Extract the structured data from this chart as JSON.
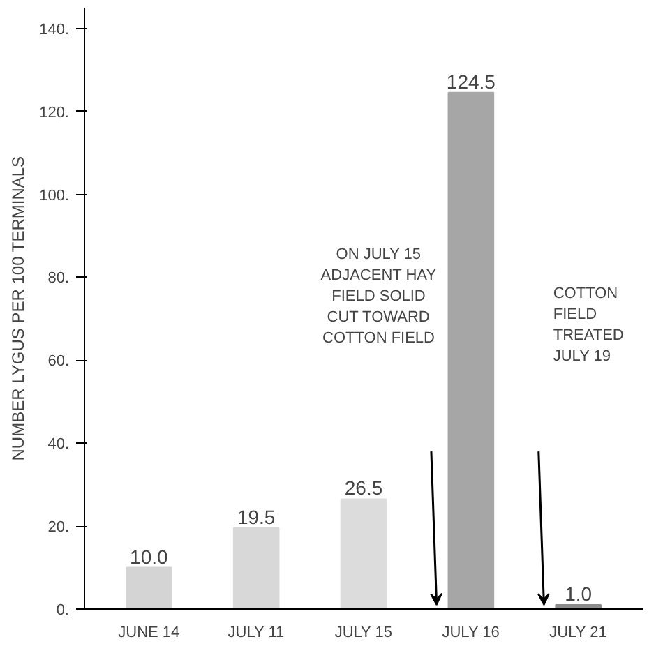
{
  "chart_data": {
    "type": "bar",
    "ylabel": "NUMBER LYGUS PER 100 TERMINALS",
    "categories": [
      "JUNE 14",
      "JULY 11",
      "JULY 15",
      "JULY 16",
      "JULY 21"
    ],
    "values": [
      10.0,
      19.5,
      26.5,
      124.5,
      1.0
    ],
    "value_labels": [
      "10.0",
      "19.5",
      "26.5",
      "124.5",
      "1.0"
    ],
    "colors": [
      "#d4d4d4",
      "#d8d8d8",
      "#dcdcdc",
      "#a6a6a6",
      "#8c8c8c"
    ],
    "ylim": [
      0,
      145
    ],
    "yticks": [
      {
        "value": 0,
        "label": "0."
      },
      {
        "value": 20,
        "label": "20."
      },
      {
        "value": 40,
        "label": "40."
      },
      {
        "value": 60,
        "label": "60."
      },
      {
        "value": 80,
        "label": "80."
      },
      {
        "value": 100,
        "label": "100."
      },
      {
        "value": 120,
        "label": "120."
      },
      {
        "value": 140,
        "label": "140."
      }
    ],
    "grid": false,
    "annotations": [
      "ON JULY 15\nADJACENT HAY\nFIELD SOLID\nCUT TOWARD\nCOTTON FIELD",
      "COTTON\nFIELD\nTREATED\nJULY 19"
    ]
  }
}
